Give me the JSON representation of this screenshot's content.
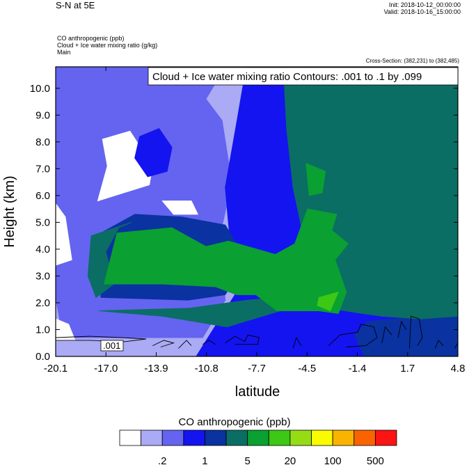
{
  "header": {
    "title": "S-N at 5E",
    "init": "Init: 2018-10-12_00:00:00",
    "valid": "Valid: 2018-10-16_15:00:00",
    "field1": "CO anthropogenic   (ppb)",
    "field2": "Cloud + Ice water mixing ratio   (g/kg)",
    "field3": "Main",
    "cross_section": "Cross-Section: (382,231) to (382,485)"
  },
  "chart_data": {
    "type": "heatmap",
    "contour_info": "Cloud + Ice water mixing ratio Contours: .001 to .1 by .099",
    "contour_label": ".001",
    "xlabel": "latitude",
    "ylabel": "Height (km)",
    "x_ticks": [
      "-20.1",
      "-17.0",
      "-13.9",
      "-10.8",
      "-7.7",
      "-4.5",
      "-1.4",
      "1.7",
      "4.8"
    ],
    "xlim": [
      -20.1,
      4.8
    ],
    "y_ticks": [
      "0.0",
      "1.0",
      "2.0",
      "3.0",
      "4.0",
      "5.0",
      "6.0",
      "7.0",
      "8.0",
      "9.0",
      "10.0"
    ],
    "ylim": [
      0,
      10.8
    ],
    "colorbar": {
      "title": "CO anthropogenic  (ppb)",
      "labels": [
        ".2",
        "1",
        "5",
        "20",
        "100",
        "500"
      ],
      "colors": [
        "#ffffff",
        "#aaaaf5",
        "#6464f0",
        "#1414f0",
        "#0a32a0",
        "#0a6e64",
        "#0aa032",
        "#3cc814",
        "#96dc14",
        "#fafa00",
        "#fab400",
        "#fa6400",
        "#fa1414"
      ]
    },
    "regions": [
      {
        "level": 1,
        "points": [
          [
            -20.1,
            0
          ],
          [
            4.8,
            0
          ],
          [
            4.8,
            10.8
          ],
          [
            -20.1,
            10.8
          ]
        ]
      },
      {
        "level": 2,
        "points": [
          [
            -19.5,
            0.7
          ],
          [
            -11,
            0.7
          ],
          [
            -10.3,
            1.4
          ],
          [
            -9.6,
            2.1
          ],
          [
            -10,
            4.3
          ],
          [
            -9.2,
            6.5
          ],
          [
            -9.8,
            8.8
          ],
          [
            -10.8,
            9.6
          ],
          [
            -9.6,
            10.8
          ],
          [
            -20.1,
            10.8
          ],
          [
            -20.1,
            2.2
          ],
          [
            -19.8,
            1.2
          ]
        ]
      },
      {
        "level": 0,
        "points": [
          [
            -17.2,
            8.1
          ],
          [
            -15.5,
            8.4
          ],
          [
            -14.1,
            7.1
          ],
          [
            -14.3,
            6.4
          ],
          [
            -15.9,
            6.1
          ],
          [
            -17.5,
            5.8
          ],
          [
            -16.9,
            7.1
          ]
        ]
      },
      {
        "level": 0,
        "points": [
          [
            -20.1,
            5.7
          ],
          [
            -19.5,
            5.2
          ],
          [
            -19.1,
            3.6
          ],
          [
            -20.1,
            3.4
          ]
        ]
      },
      {
        "level": 0,
        "points": [
          [
            -20.1,
            1.4
          ],
          [
            -19.3,
            1.2
          ],
          [
            -18.9,
            0.6
          ],
          [
            -20.1,
            0.6
          ]
        ]
      },
      {
        "level": 0,
        "points": [
          [
            -13.5,
            5.8
          ],
          [
            -11.7,
            5.8
          ],
          [
            -11.3,
            5.3
          ],
          [
            -12.8,
            5.3
          ]
        ]
      },
      {
        "level": 3,
        "points": [
          [
            -14.9,
            8.2
          ],
          [
            -13.7,
            8.5
          ],
          [
            -12.9,
            7.8
          ],
          [
            -13.2,
            6.9
          ],
          [
            -14.4,
            6.7
          ],
          [
            -15.2,
            7.4
          ]
        ]
      },
      {
        "level": 3,
        "points": [
          [
            -20.1,
            0
          ],
          [
            -11.4,
            0
          ],
          [
            -9,
            2.3
          ],
          [
            -9.6,
            6.3
          ],
          [
            -8.9,
            8.7
          ],
          [
            -8.3,
            10.8
          ],
          [
            -5.9,
            10.8
          ],
          [
            -5.3,
            8.5
          ],
          [
            -4.4,
            6.4
          ],
          [
            -4.2,
            4.3
          ],
          [
            -5.2,
            2.4
          ],
          [
            -2.6,
            2
          ],
          [
            0.9,
            1.8
          ],
          [
            2.6,
            2.2
          ],
          [
            4.8,
            2.6
          ],
          [
            4.8,
            0
          ]
        ]
      },
      {
        "level": 4,
        "points": [
          [
            -17.3,
            2.2
          ],
          [
            -11.9,
            2.1
          ],
          [
            -9.6,
            2.3
          ],
          [
            -8.3,
            3.6
          ],
          [
            -9.6,
            4.9
          ],
          [
            -12.3,
            5.2
          ],
          [
            -15.2,
            5.3
          ],
          [
            -17.3,
            4.6
          ]
        ]
      },
      {
        "level": 4,
        "points": [
          [
            -1,
            0
          ],
          [
            4.8,
            0
          ],
          [
            4.8,
            1.6
          ],
          [
            2.6,
            1.5
          ],
          [
            -0.8,
            1.3
          ],
          [
            -1.6,
            0.8
          ]
        ]
      },
      {
        "level": 5,
        "points": [
          [
            -17.4,
            1.7
          ],
          [
            -11.8,
            1.8
          ],
          [
            -8.2,
            2.1
          ],
          [
            -5.9,
            2.2
          ],
          [
            -5.2,
            2.5
          ],
          [
            -4.7,
            4.3
          ],
          [
            -5.4,
            6.3
          ],
          [
            -5.8,
            8.5
          ],
          [
            -6,
            10.8
          ],
          [
            4.8,
            10.8
          ],
          [
            4.8,
            1.5
          ],
          [
            2.5,
            1.4
          ],
          [
            0.1,
            1.5
          ],
          [
            -1.1,
            1.6
          ],
          [
            -3.2,
            1.8
          ],
          [
            -6.2,
            1.7
          ],
          [
            -9.5,
            1.1
          ],
          [
            -13.5,
            1.5
          ]
        ]
      },
      {
        "level": 5,
        "points": [
          [
            -17.6,
            2.2
          ],
          [
            -16.5,
            2.7
          ],
          [
            -17,
            3.9
          ],
          [
            -16.2,
            4.8
          ],
          [
            -15.4,
            5
          ],
          [
            -17.9,
            4.5
          ],
          [
            -18.1,
            3
          ]
        ]
      },
      {
        "level": 6,
        "points": [
          [
            -17.1,
            2.7
          ],
          [
            -13.5,
            2.7
          ],
          [
            -10.2,
            2.6
          ],
          [
            -8.9,
            2.3
          ],
          [
            -7.7,
            2.3
          ],
          [
            -6.4,
            1.7
          ],
          [
            -3.8,
            1.7
          ],
          [
            -2.6,
            1.6
          ],
          [
            -2.1,
            2.4
          ],
          [
            -2.8,
            3.6
          ],
          [
            -2,
            4.2
          ],
          [
            -3,
            4.7
          ],
          [
            -2.7,
            5.3
          ],
          [
            -4.5,
            5.5
          ],
          [
            -5.3,
            4.2
          ],
          [
            -6.5,
            3.8
          ],
          [
            -9.4,
            4.3
          ],
          [
            -10.8,
            4.1
          ],
          [
            -12.9,
            4.8
          ],
          [
            -16.3,
            4.6
          ]
        ]
      },
      {
        "level": 6,
        "points": [
          [
            -4.6,
            7.2
          ],
          [
            -3.4,
            6.9
          ],
          [
            -3.6,
            6.1
          ],
          [
            -4.4,
            6
          ]
        ]
      },
      {
        "level": 7,
        "points": [
          [
            -3.8,
            2.2
          ],
          [
            -2.6,
            2.4
          ],
          [
            -3.1,
            1.7
          ],
          [
            -3.9,
            1.9
          ]
        ]
      }
    ],
    "contours": [
      [
        [
          -20.1,
          0.6
        ],
        [
          -18,
          0.6
        ],
        [
          -15.8,
          0.55
        ],
        [
          -14.5,
          0.65
        ],
        [
          -16,
          0.7
        ],
        [
          -18,
          0.75
        ],
        [
          -20.1,
          0.7
        ]
      ],
      [
        [
          -14.1,
          0.4
        ],
        [
          -13.4,
          0.6
        ],
        [
          -12.8,
          0.5
        ],
        [
          -13.6,
          0.35
        ]
      ],
      [
        [
          -12.5,
          0.3
        ],
        [
          -12,
          0.6
        ],
        [
          -11.7,
          0.4
        ]
      ],
      [
        [
          -11,
          0.45
        ],
        [
          -10.6,
          0.6
        ],
        [
          -10.2,
          0.45
        ]
      ],
      [
        [
          -9.6,
          0.5
        ],
        [
          -9,
          0.75
        ],
        [
          -8.4,
          0.55
        ],
        [
          -8.2,
          0.8
        ],
        [
          -7.5,
          0.7
        ],
        [
          -7.6,
          0.45
        ],
        [
          -9,
          0.45
        ]
      ],
      [
        [
          -5.4,
          0.3
        ],
        [
          -5.2,
          0.7
        ],
        [
          -4.9,
          0.4
        ]
      ],
      [
        [
          -3.2,
          0.4
        ],
        [
          -2.5,
          0.8
        ],
        [
          -1.4,
          0.9
        ],
        [
          -1.2,
          1.2
        ],
        [
          -0.4,
          1.1
        ],
        [
          -0.2,
          0.7
        ],
        [
          -0.9,
          0.4
        ],
        [
          -2.1,
          0.35
        ]
      ],
      [
        [
          0.1,
          0.5
        ],
        [
          0.3,
          1.1
        ],
        [
          0.7,
          0.8
        ]
      ],
      [
        [
          1.1,
          0.7
        ],
        [
          1.3,
          1.3
        ],
        [
          1.6,
          1.0
        ]
      ],
      [
        [
          1.8,
          0.3
        ],
        [
          1.9,
          1.5
        ],
        [
          2.4,
          1.4
        ],
        [
          2.6,
          0.7
        ],
        [
          2.3,
          0.4
        ]
      ],
      [
        [
          3.4,
          0.3
        ],
        [
          3.6,
          0.6
        ],
        [
          3.9,
          0.4
        ]
      ],
      [
        [
          4.6,
          0.3
        ],
        [
          4.8,
          0.5
        ]
      ]
    ]
  }
}
